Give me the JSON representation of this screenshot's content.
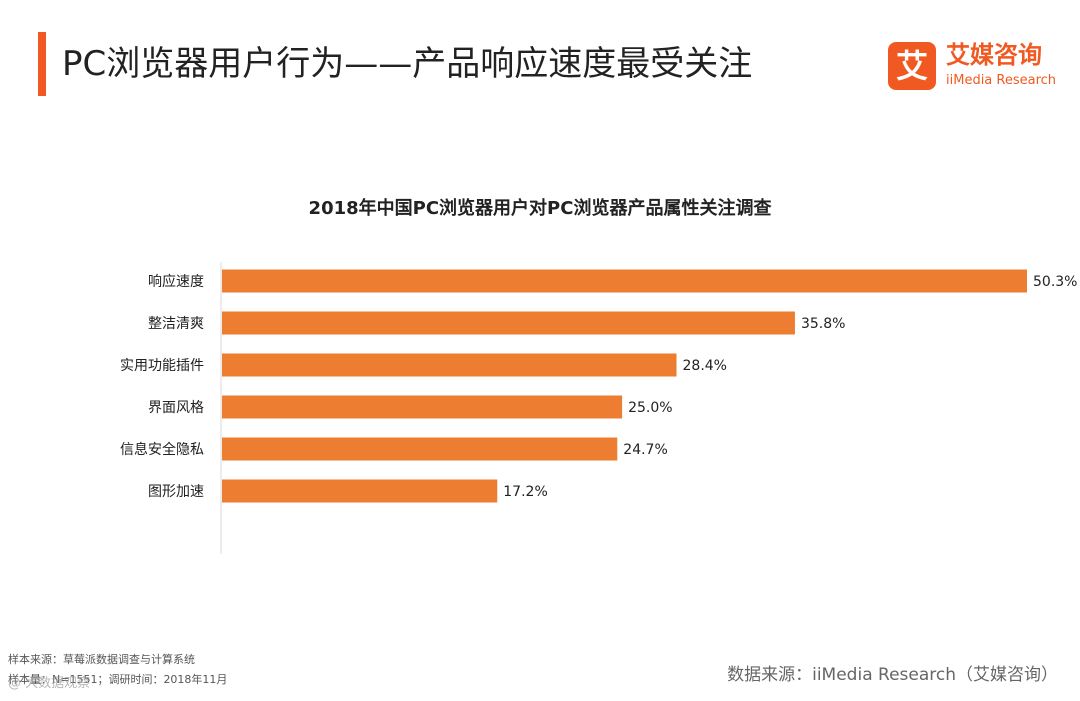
{
  "header": {
    "title": "PC浏览器用户行为——产品响应速度最受关注"
  },
  "logo": {
    "mark": "艾",
    "name_cn": "艾媒咨询",
    "name_en": "iiMedia Research"
  },
  "chart_data": {
    "type": "bar",
    "orientation": "horizontal",
    "title": "2018年中国PC浏览器用户对PC浏览器产品属性关注调查",
    "categories": [
      "响应速度",
      "整洁清爽",
      "实用功能插件",
      "界面风格",
      "信息安全隐私",
      "图形加速"
    ],
    "values": [
      50.3,
      35.8,
      28.4,
      25.0,
      24.7,
      17.2
    ],
    "labels": [
      "50.3%",
      "35.8%",
      "28.4%",
      "25.0%",
      "24.7%",
      "17.2%"
    ],
    "unit": "%",
    "xlim": [
      0,
      50.3
    ],
    "bar_color": "#ed7d31",
    "xlabel": "",
    "ylabel": ""
  },
  "footer": {
    "sample_source": "样本来源：草莓派数据调查与计算系统",
    "sample_info": "样本量：N=1551；调研时间：2018年11月",
    "data_source": "数据来源：iiMedia Research（艾媒咨询）",
    "watermark": "@ 大数据观察"
  }
}
